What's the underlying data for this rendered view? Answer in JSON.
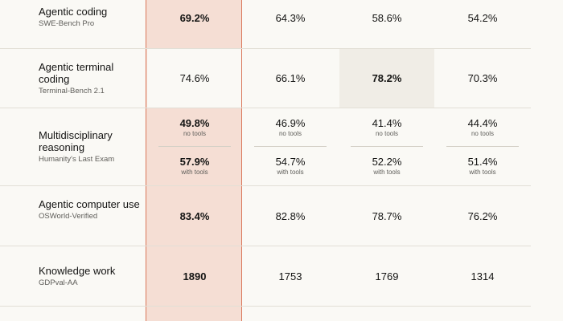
{
  "rows": [
    {
      "title": "Agentic coding",
      "subtitle": "SWE-Bench Pro",
      "values": [
        "69.2%",
        "64.3%",
        "58.6%",
        "54.2%"
      ]
    },
    {
      "title": "Agentic terminal coding",
      "subtitle": "Terminal-Bench 2.1",
      "values": [
        "74.6%",
        "66.1%",
        "78.2%",
        "70.3%"
      ]
    },
    {
      "title": "Multidisciplinary reasoning",
      "subtitle": "Humanity's Last Exam",
      "no_tools": [
        "49.8%",
        "46.9%",
        "41.4%",
        "44.4%"
      ],
      "with_tools": [
        "57.9%",
        "54.7%",
        "52.2%",
        "51.4%"
      ],
      "no_tools_label": "no tools",
      "with_tools_label": "with tools"
    },
    {
      "title": "Agentic computer use",
      "subtitle": "OSWorld-Verified",
      "values": [
        "83.4%",
        "82.8%",
        "78.7%",
        "76.2%"
      ]
    },
    {
      "title": "Knowledge work",
      "subtitle": "GDPval-AA",
      "values": [
        "1890",
        "1753",
        "1769",
        "1314"
      ]
    }
  ],
  "colors": {
    "background": "#faf9f5",
    "highlight_fill": "#f5ded4",
    "highlight_border": "#d9775a",
    "best_cell_fill": "#f0ede6"
  }
}
